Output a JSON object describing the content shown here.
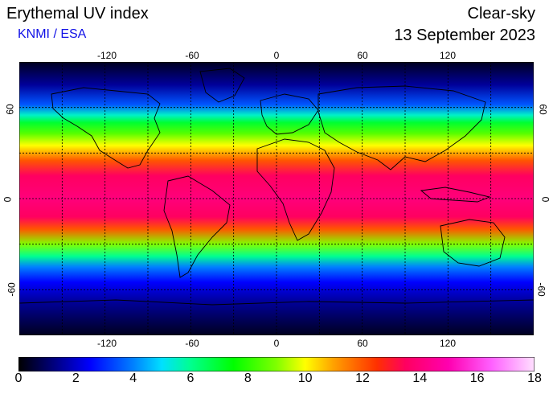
{
  "header": {
    "title": "Erythemal UV index",
    "subtitle": "KNMI / ESA",
    "mode": "Clear-sky",
    "date": "13 September 2023"
  },
  "map": {
    "lon_ticks": [
      "-120",
      "-60",
      "0",
      "60",
      "120"
    ],
    "lat_ticks": [
      "60",
      "0",
      "-60"
    ],
    "grid_lon_step": 30,
    "grid_lat_step": 30,
    "uv_bands": [
      {
        "lat": 90,
        "uv": 0.3
      },
      {
        "lat": 75,
        "uv": 1.5
      },
      {
        "lat": 62,
        "uv": 3.5
      },
      {
        "lat": 55,
        "uv": 5.5
      },
      {
        "lat": 50,
        "uv": 7.0
      },
      {
        "lat": 43,
        "uv": 8.5
      },
      {
        "lat": 35,
        "uv": 10.0
      },
      {
        "lat": 25,
        "uv": 12.0
      },
      {
        "lat": 15,
        "uv": 13.5
      },
      {
        "lat": 0,
        "uv": 14.0
      },
      {
        "lat": -12,
        "uv": 13.5
      },
      {
        "lat": -20,
        "uv": 12.0
      },
      {
        "lat": -30,
        "uv": 9.0
      },
      {
        "lat": -38,
        "uv": 6.0
      },
      {
        "lat": -45,
        "uv": 4.0
      },
      {
        "lat": -55,
        "uv": 2.5
      },
      {
        "lat": -68,
        "uv": 1.5
      },
      {
        "lat": -90,
        "uv": 0.3
      }
    ]
  },
  "colorbar": {
    "labels": [
      "0",
      "2",
      "4",
      "6",
      "8",
      "10",
      "12",
      "14",
      "16",
      "18"
    ],
    "min": 0,
    "max": 18,
    "stops": [
      {
        "v": 0,
        "color": "#000000"
      },
      {
        "v": 1,
        "color": "#000066"
      },
      {
        "v": 2.5,
        "color": "#0000ff"
      },
      {
        "v": 4,
        "color": "#0080ff"
      },
      {
        "v": 5,
        "color": "#00e0ff"
      },
      {
        "v": 6,
        "color": "#00ff90"
      },
      {
        "v": 7.5,
        "color": "#00ff00"
      },
      {
        "v": 9,
        "color": "#80ff00"
      },
      {
        "v": 10,
        "color": "#ffff00"
      },
      {
        "v": 11,
        "color": "#ffa000"
      },
      {
        "v": 12.5,
        "color": "#ff3000"
      },
      {
        "v": 13.5,
        "color": "#ff0060"
      },
      {
        "v": 15,
        "color": "#ff00b0"
      },
      {
        "v": 16.5,
        "color": "#ff60ff"
      },
      {
        "v": 18,
        "color": "#ffe0ff"
      }
    ]
  }
}
